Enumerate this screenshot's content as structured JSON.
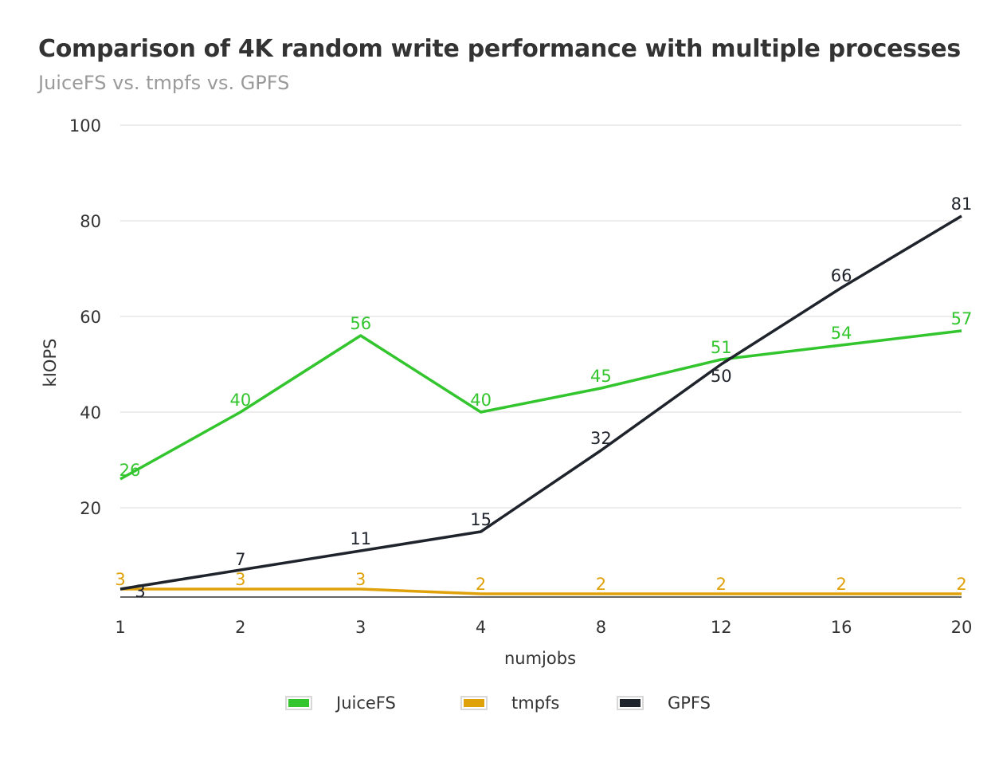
{
  "title": "Comparison of 4K random write performance with multiple processes",
  "subtitle": "JuiceFS vs. tmpfs vs. GPFS",
  "chart_data": {
    "type": "line",
    "categories": [
      "1",
      "2",
      "3",
      "4",
      "8",
      "12",
      "16",
      "20"
    ],
    "xlabel": "numjobs",
    "ylabel": "kIOPS",
    "ylim": [
      0,
      100
    ],
    "yticks": [
      "20",
      "40",
      "60",
      "80",
      "100"
    ],
    "grid": true,
    "legend_position": "bottom",
    "series": [
      {
        "name": "JuiceFS",
        "color": "#33c52e",
        "values": [
          26,
          40,
          56,
          40,
          45,
          51,
          54,
          57
        ]
      },
      {
        "name": "tmpfs",
        "color": "#e0a20a",
        "values": [
          3,
          3,
          3,
          2,
          2,
          2,
          2,
          2
        ]
      },
      {
        "name": "GPFS",
        "color": "#1f232b",
        "values": [
          3,
          7,
          11,
          15,
          32,
          50,
          66,
          81
        ]
      }
    ]
  }
}
